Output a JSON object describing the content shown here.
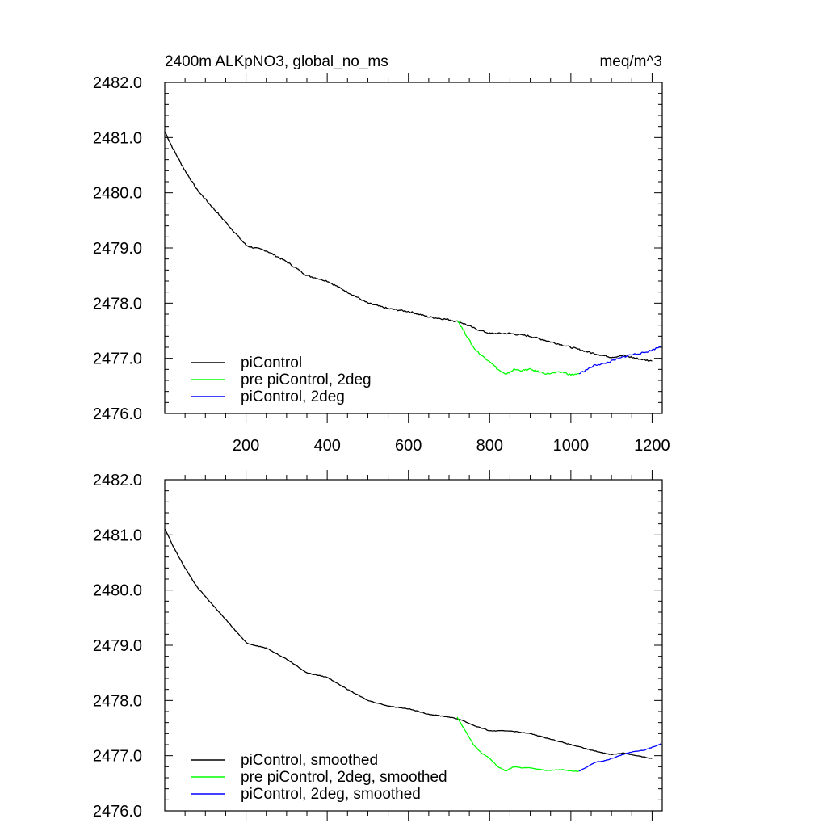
{
  "chart_data": [
    {
      "type": "line",
      "title_left": "2400m ALKpNO3, global_no_ms",
      "title_right": "meq/m^3",
      "xlim": [
        0,
        1225
      ],
      "ylim": [
        2476.0,
        2482.0
      ],
      "x_ticks": [
        200,
        400,
        600,
        800,
        1000,
        1200
      ],
      "x_tick_labels": [
        "200",
        "400",
        "600",
        "800",
        "1000",
        "1200"
      ],
      "y_ticks": [
        2476.0,
        2477.0,
        2478.0,
        2479.0,
        2480.0,
        2481.0,
        2482.0
      ],
      "y_tick_labels": [
        "2476.0",
        "2477.0",
        "2478.0",
        "2479.0",
        "2480.0",
        "2481.0",
        "2482.0"
      ],
      "legend_position": "bottom-left",
      "series": [
        {
          "name": "piControl",
          "color": "#000000",
          "x": [
            1,
            20,
            50,
            80,
            110,
            140,
            170,
            200,
            210,
            250,
            300,
            350,
            400,
            450,
            500,
            550,
            600,
            650,
            700,
            730,
            760,
            800,
            850,
            900,
            950,
            1000,
            1050,
            1080,
            1100,
            1130,
            1160,
            1200
          ],
          "y": [
            2481.1,
            2480.8,
            2480.4,
            2480.05,
            2479.8,
            2479.55,
            2479.3,
            2479.05,
            2479.02,
            2478.95,
            2478.75,
            2478.5,
            2478.4,
            2478.2,
            2478.0,
            2477.9,
            2477.85,
            2477.75,
            2477.7,
            2477.65,
            2477.55,
            2477.45,
            2477.45,
            2477.4,
            2477.3,
            2477.2,
            2477.1,
            2477.05,
            2477.02,
            2477.05,
            2477.0,
            2476.95
          ]
        },
        {
          "name": "pre piControl, 2deg",
          "color": "#00ff00",
          "x": [
            720,
            740,
            760,
            780,
            800,
            820,
            840,
            860,
            880,
            900,
            940,
            980,
            1000,
            1020
          ],
          "y": [
            2477.7,
            2477.45,
            2477.2,
            2477.05,
            2476.95,
            2476.8,
            2476.7,
            2476.8,
            2476.78,
            2476.8,
            2476.72,
            2476.75,
            2476.7,
            2476.72
          ]
        },
        {
          "name": "piControl, 2deg",
          "color": "#0000ff",
          "x": [
            1020,
            1040,
            1060,
            1080,
            1100,
            1120,
            1140,
            1160,
            1180,
            1200,
            1222
          ],
          "y": [
            2476.72,
            2476.8,
            2476.88,
            2476.9,
            2476.95,
            2477.0,
            2477.05,
            2477.08,
            2477.1,
            2477.15,
            2477.22
          ]
        }
      ]
    },
    {
      "type": "line",
      "xlim": [
        0,
        1225
      ],
      "ylim": [
        2476.0,
        2482.0
      ],
      "y_ticks": [
        2476.0,
        2477.0,
        2478.0,
        2479.0,
        2480.0,
        2481.0,
        2482.0
      ],
      "y_tick_labels": [
        "2476.0",
        "2477.0",
        "2478.0",
        "2479.0",
        "2480.0",
        "2481.0",
        "2482.0"
      ],
      "legend_position": "bottom-left",
      "series": [
        {
          "name": "piControl, smoothed",
          "color": "#000000",
          "x": [
            1,
            20,
            50,
            80,
            110,
            140,
            170,
            200,
            210,
            250,
            300,
            350,
            400,
            450,
            500,
            550,
            600,
            650,
            700,
            730,
            760,
            800,
            850,
            900,
            950,
            1000,
            1050,
            1080,
            1100,
            1130,
            1160,
            1200
          ],
          "y": [
            2481.1,
            2480.8,
            2480.4,
            2480.05,
            2479.8,
            2479.55,
            2479.3,
            2479.05,
            2479.02,
            2478.95,
            2478.75,
            2478.5,
            2478.42,
            2478.2,
            2478.0,
            2477.9,
            2477.85,
            2477.75,
            2477.7,
            2477.65,
            2477.55,
            2477.45,
            2477.45,
            2477.4,
            2477.3,
            2477.2,
            2477.1,
            2477.05,
            2477.02,
            2477.05,
            2477.0,
            2476.95
          ]
        },
        {
          "name": "pre piControl, 2deg, smoothed",
          "color": "#00ff00",
          "x": [
            720,
            740,
            760,
            780,
            800,
            820,
            840,
            860,
            880,
            900,
            940,
            980,
            1000,
            1020
          ],
          "y": [
            2477.7,
            2477.45,
            2477.2,
            2477.05,
            2476.95,
            2476.8,
            2476.72,
            2476.8,
            2476.78,
            2476.78,
            2476.73,
            2476.75,
            2476.72,
            2476.72
          ]
        },
        {
          "name": "piControl, 2deg, smoothed",
          "color": "#0000ff",
          "x": [
            1020,
            1040,
            1060,
            1080,
            1100,
            1120,
            1140,
            1160,
            1180,
            1200,
            1222
          ],
          "y": [
            2476.72,
            2476.8,
            2476.88,
            2476.9,
            2476.95,
            2477.0,
            2477.05,
            2477.08,
            2477.1,
            2477.15,
            2477.22
          ]
        }
      ]
    }
  ]
}
